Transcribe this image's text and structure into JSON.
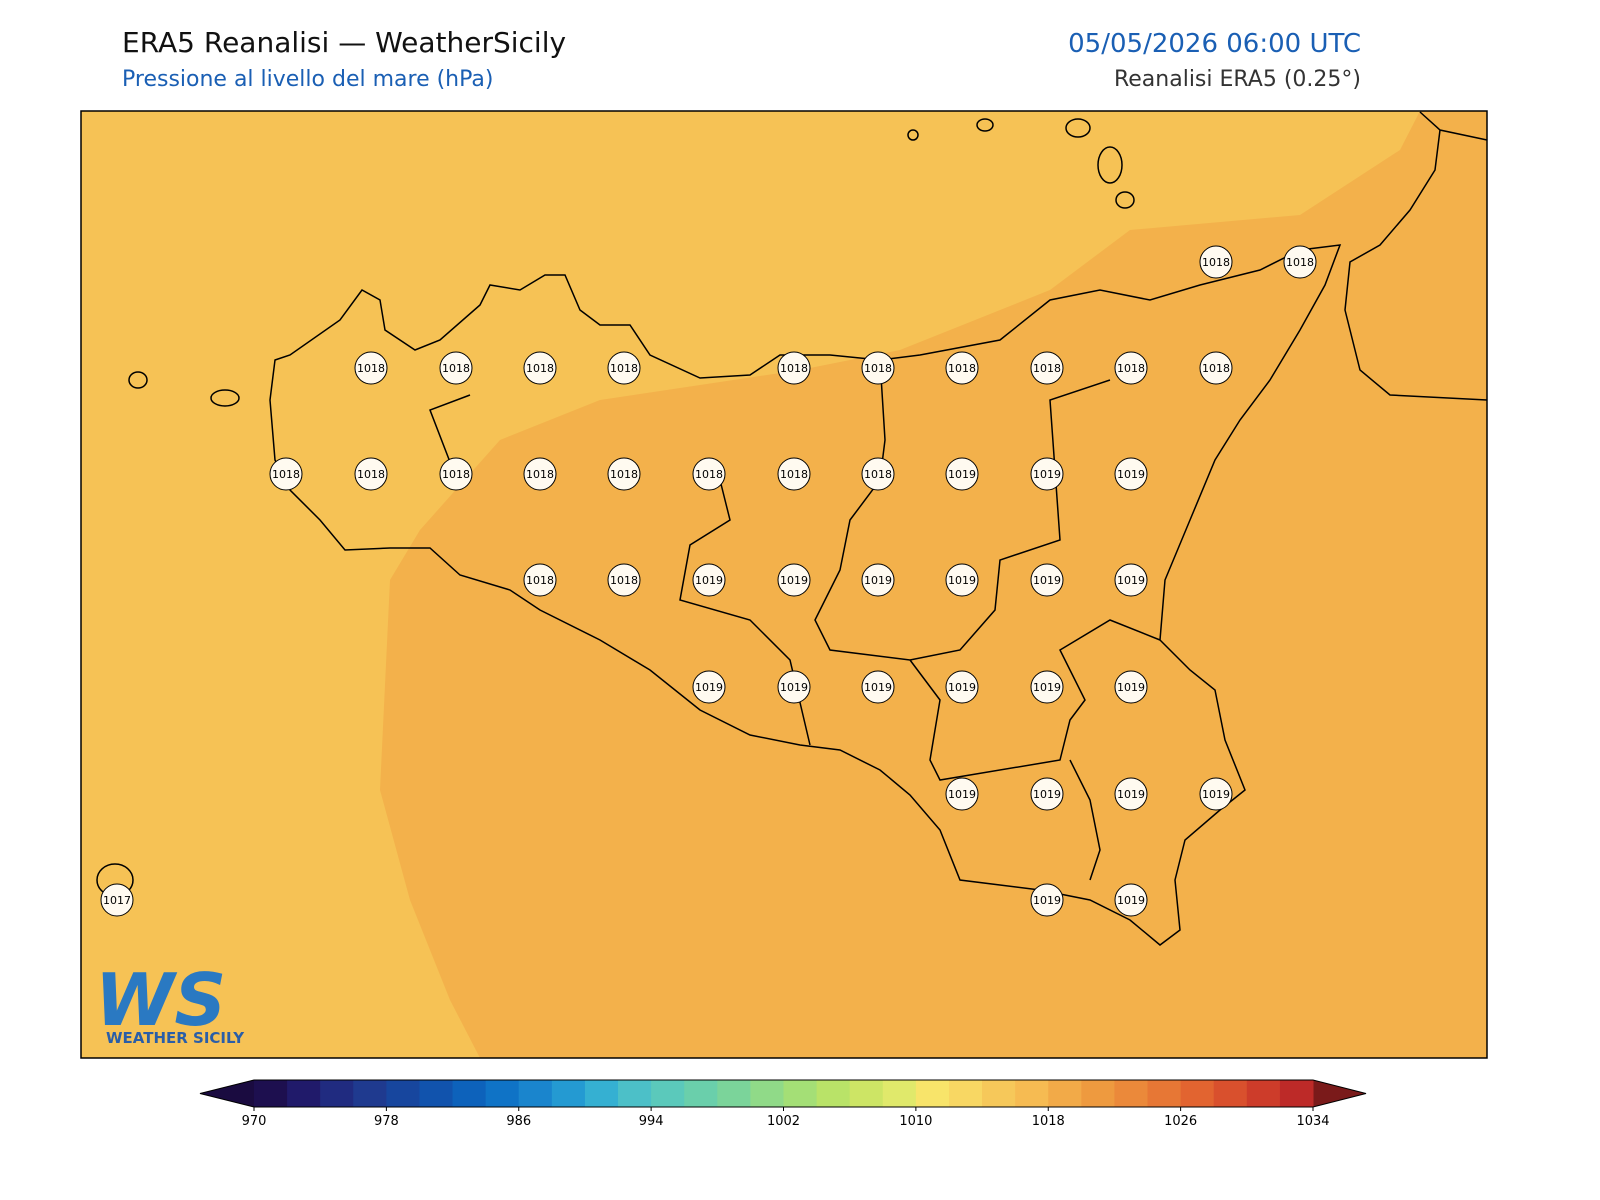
{
  "header": {
    "title": "ERA5 Reanalisi — WeatherSicily",
    "subtitle": "Pressione al livello del mare (hPa)",
    "datetime": "05/05/2026 06:00 UTC",
    "source": "Reanalisi ERA5 (0.25°)"
  },
  "map": {
    "station_values": [
      1018,
      1018,
      1018,
      1018,
      1018,
      1018,
      1018,
      1018,
      1018,
      1018,
      1018,
      1018,
      1018,
      1018,
      1018,
      1018,
      1018,
      1018,
      1018,
      1018,
      1019,
      1019,
      1019,
      1018,
      1018,
      1019,
      1019,
      1019,
      1019,
      1019,
      1019,
      1019,
      1019,
      1019,
      1019,
      1019,
      1019,
      1019,
      1019,
      1019,
      1019,
      1017,
      1019,
      1019
    ]
  },
  "colorbar": {
    "ticks": [
      970,
      978,
      986,
      994,
      1002,
      1010,
      1018,
      1026,
      1034
    ],
    "colors": [
      "#1d0f4f",
      "#201a6a",
      "#202b80",
      "#1f3a8f",
      "#17469e",
      "#1153ad",
      "#0d62bb",
      "#0f73c6",
      "#1a85cd",
      "#249ad2",
      "#35b0d2",
      "#4cc0c8",
      "#5bc9bb",
      "#6acfab",
      "#7bd49a",
      "#90da88",
      "#a4df76",
      "#b9e368",
      "#cde565",
      "#e0e96b",
      "#f8e46a",
      "#f8d763",
      "#f6c85a",
      "#f6bb52",
      "#f2aa48",
      "#ee9a3f",
      "#eb893a",
      "#e77735",
      "#e26430",
      "#d9502d",
      "#cd3c2a",
      "#bd2a28"
    ],
    "under_color": "#1a0b40",
    "over_color": "#7a1a1a"
  },
  "logo": {
    "mark": "WS",
    "name": "WEATHER SICILY"
  }
}
